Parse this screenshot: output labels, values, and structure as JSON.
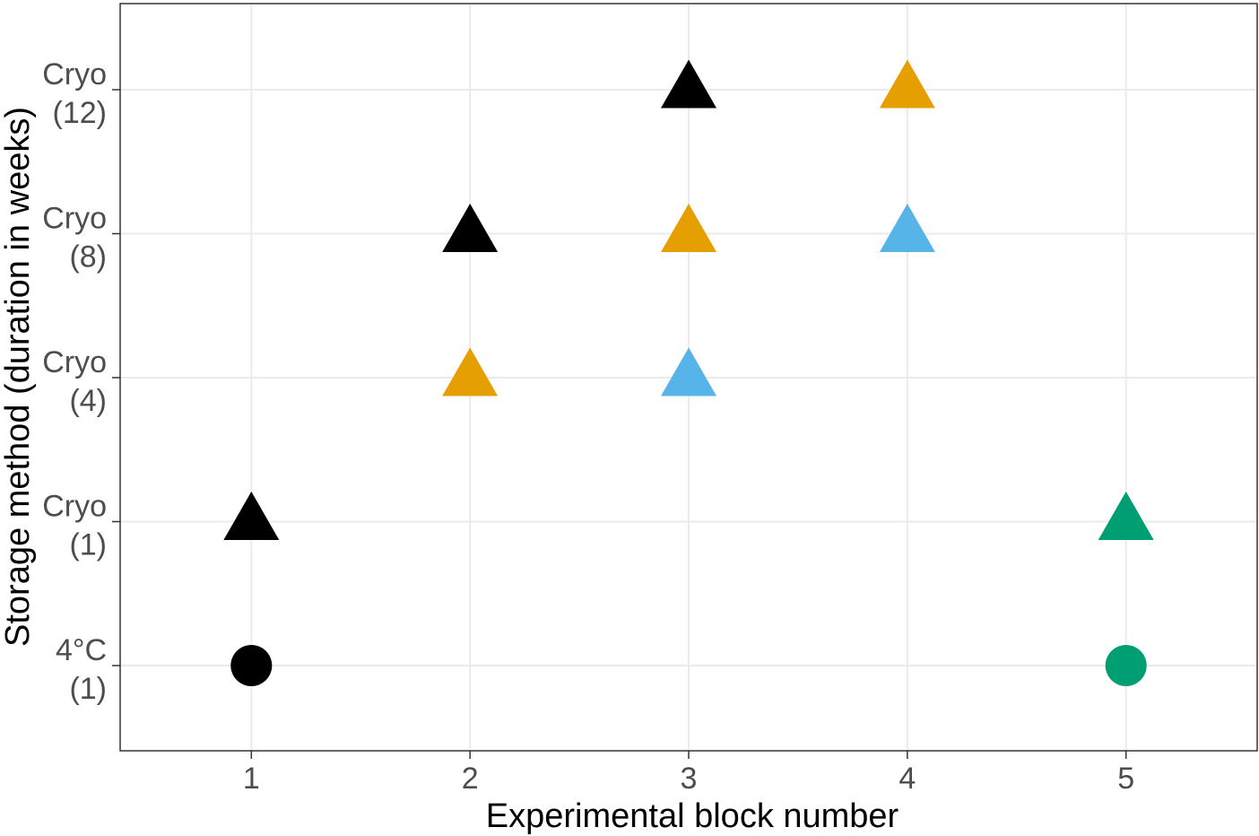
{
  "chart_data": {
    "type": "scatter",
    "title": "",
    "xlabel": "Experimental block number",
    "ylabel": "Storage method (duration in weeks)",
    "x_ticks": [
      "1",
      "2",
      "3",
      "4",
      "5"
    ],
    "xlim": [
      0.4,
      5.6
    ],
    "y_categories": [
      {
        "line1": "4°C",
        "line2": "(1)"
      },
      {
        "line1": "Cryo",
        "line2": "(1)"
      },
      {
        "line1": "Cryo",
        "line2": "(4)"
      },
      {
        "line1": "Cryo",
        "line2": "(8)"
      },
      {
        "line1": "Cryo",
        "line2": "(12)"
      }
    ],
    "grid": true,
    "legend": "none",
    "points": [
      {
        "x": 1,
        "y": 0,
        "shape": "circle",
        "color": "#000000"
      },
      {
        "x": 1,
        "y": 1,
        "shape": "triangle",
        "color": "#000000"
      },
      {
        "x": 2,
        "y": 2,
        "shape": "triangle",
        "color": "#E69F00"
      },
      {
        "x": 2,
        "y": 3,
        "shape": "triangle",
        "color": "#000000"
      },
      {
        "x": 3,
        "y": 2,
        "shape": "triangle",
        "color": "#56B4E9"
      },
      {
        "x": 3,
        "y": 3,
        "shape": "triangle",
        "color": "#E69F00"
      },
      {
        "x": 3,
        "y": 4,
        "shape": "triangle",
        "color": "#000000"
      },
      {
        "x": 4,
        "y": 3,
        "shape": "triangle",
        "color": "#56B4E9"
      },
      {
        "x": 4,
        "y": 4,
        "shape": "triangle",
        "color": "#E69F00"
      },
      {
        "x": 5,
        "y": 0,
        "shape": "circle",
        "color": "#009E73"
      },
      {
        "x": 5,
        "y": 1,
        "shape": "triangle",
        "color": "#009E73"
      }
    ]
  }
}
